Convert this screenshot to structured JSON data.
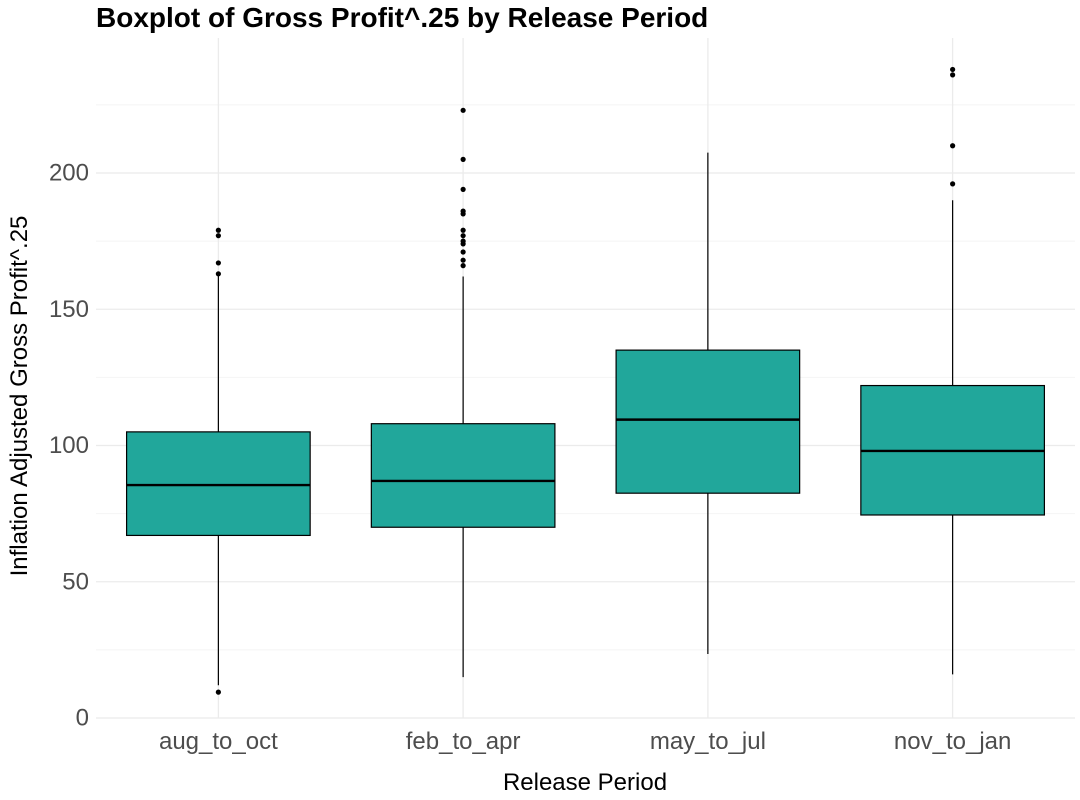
{
  "chart_data": {
    "type": "boxplot",
    "title": "Boxplot of Gross Profit^.25 by Release Period",
    "xlabel": "Release Period",
    "ylabel": "Inflation Adjusted Gross Profit^.25",
    "ylim": [
      0,
      240
    ],
    "yticks": [
      0,
      50,
      100,
      150,
      200
    ],
    "grid": true,
    "colors": {
      "box_fill": "#21a79b",
      "box_stroke": "#000000",
      "grid_major": "#ebebeb",
      "grid_minor": "#f4f4f4"
    },
    "categories": [
      "aug_to_oct",
      "feb_to_apr",
      "may_to_jul",
      "nov_to_jan"
    ],
    "boxes": [
      {
        "category": "aug_to_oct",
        "whisker_low": 12,
        "q1": 67,
        "median": 85.5,
        "q3": 105,
        "whisker_high": 163,
        "outliers": [
          9.5,
          163,
          167,
          177,
          179
        ]
      },
      {
        "category": "feb_to_apr",
        "whisker_low": 15,
        "q1": 70,
        "median": 87,
        "q3": 108,
        "whisker_high": 162,
        "outliers": [
          166,
          168,
          171,
          174,
          175,
          177,
          179,
          185,
          186,
          194,
          205,
          223
        ]
      },
      {
        "category": "may_to_jul",
        "whisker_low": 23.5,
        "q1": 82.5,
        "median": 109.5,
        "q3": 135,
        "whisker_high": 207.5,
        "outliers": []
      },
      {
        "category": "nov_to_jan",
        "whisker_low": 16,
        "q1": 74.5,
        "median": 98,
        "q3": 122,
        "whisker_high": 190,
        "outliers": [
          196,
          210,
          236,
          238
        ]
      }
    ]
  }
}
